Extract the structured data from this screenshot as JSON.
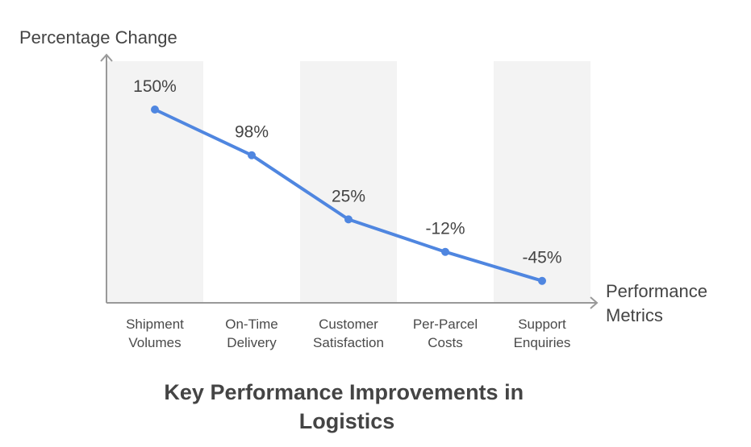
{
  "chart_data": {
    "type": "line",
    "title_lines": [
      "Key Performance Improvements in",
      "Logistics"
    ],
    "ylabel": "Percentage Change",
    "xlabel_lines": [
      "Performance",
      "Metrics"
    ],
    "categories": [
      [
        "Shipment",
        "Volumes"
      ],
      [
        "On-Time",
        "Delivery"
      ],
      [
        "Customer",
        "Satisfaction"
      ],
      [
        "Per-Parcel",
        "Costs"
      ],
      [
        "Support",
        "Enquiries"
      ]
    ],
    "values": [
      150,
      98,
      25,
      -12,
      -45
    ],
    "value_labels": [
      "150%",
      "98%",
      "25%",
      "-12%",
      "-45%"
    ],
    "ylim": [
      -70,
      205
    ],
    "grid": false,
    "colors": {
      "line": "#4f86e0",
      "band": "#f3f3f3",
      "axis": "#999999",
      "text": "#444444"
    }
  }
}
